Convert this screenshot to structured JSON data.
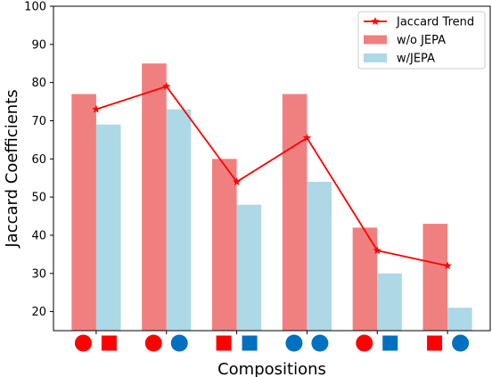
{
  "chart_data": {
    "type": "bar",
    "xlabel": "Compositions",
    "ylabel": "Jaccard Coefficients",
    "ylim": [
      15,
      100
    ],
    "yticks": [
      20,
      30,
      40,
      50,
      60,
      70,
      80,
      90,
      100
    ],
    "grid": false,
    "legend_position": "top-right",
    "categories": [
      [
        "red-circle",
        "red-square"
      ],
      [
        "red-circle",
        "blue-circle"
      ],
      [
        "red-square",
        "blue-square"
      ],
      [
        "blue-circle",
        "blue-circle"
      ],
      [
        "red-circle",
        "blue-square"
      ],
      [
        "red-square",
        "blue-circle"
      ]
    ],
    "series": [
      {
        "name": "w/o JEPA",
        "kind": "bar",
        "color": "#f08080",
        "values": [
          77,
          85,
          60,
          77,
          42,
          43
        ]
      },
      {
        "name": "w/JEPA",
        "kind": "bar",
        "color": "#add8e6",
        "values": [
          69,
          73,
          48,
          54,
          30,
          21
        ]
      },
      {
        "name": "Jaccard Trend",
        "kind": "line",
        "marker": "star",
        "color": "#ff0000",
        "values": [
          73,
          79,
          54,
          65.5,
          36,
          32
        ]
      }
    ],
    "shape_colors": {
      "red": "#ff0000",
      "blue": "#0070c0"
    }
  }
}
